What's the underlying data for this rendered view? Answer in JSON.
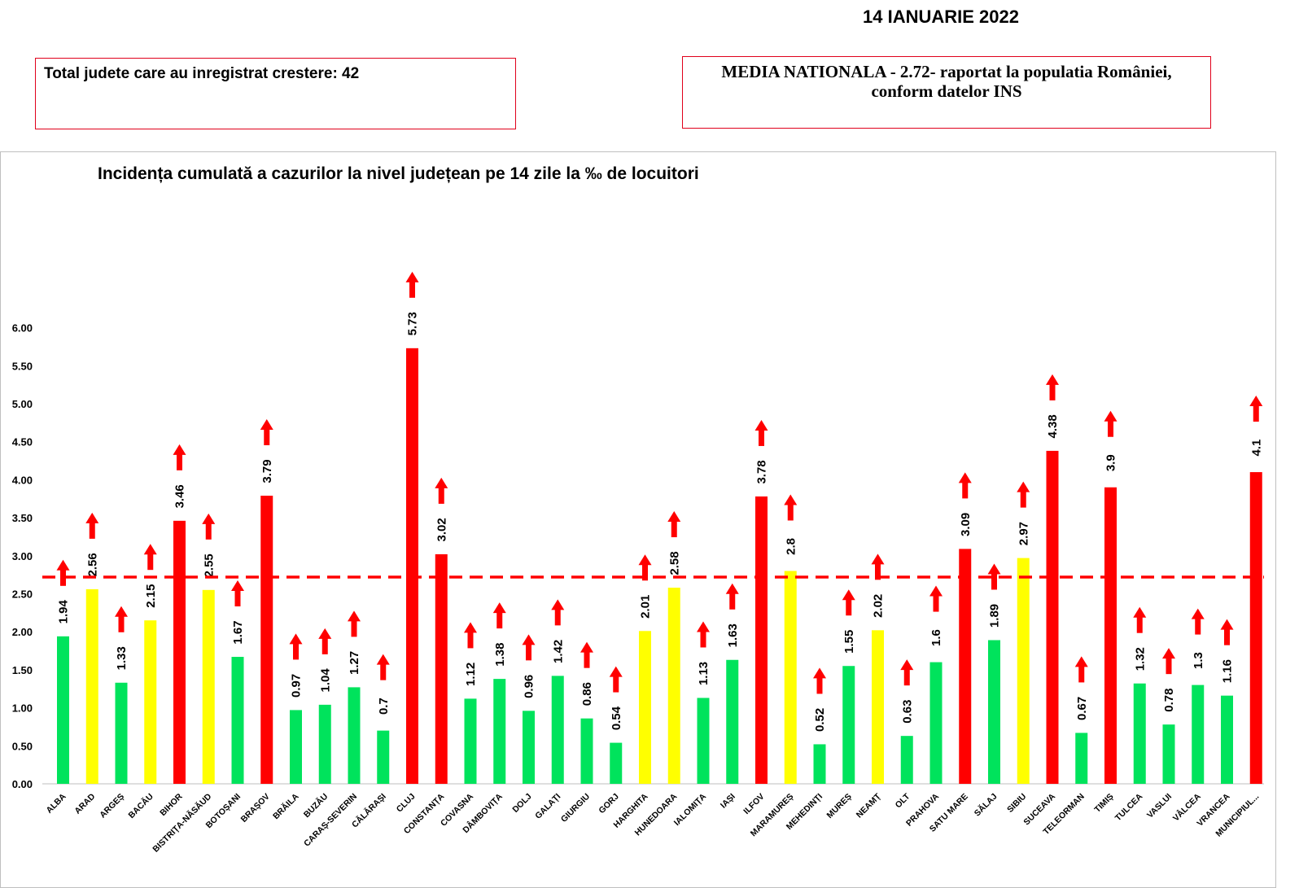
{
  "header": {
    "date": "14 IANUARIE 2022",
    "total_label": "Total judete care au inregistrat crestere: 42",
    "national_line1": "MEDIA NATIONALA - 2.72-  raportat la populatia României,",
    "national_line2": "conform datelor INS"
  },
  "colors": {
    "green": "#00e35c",
    "yellow": "#ffff00",
    "red": "#ff0000",
    "arrow": "#ff0000",
    "reference_line": "#ff0000"
  },
  "chart_data": {
    "type": "bar",
    "title": "Incidența cumulată a cazurilor la nivel județean pe 14 zile la ‰ de locuitori",
    "xlabel": "",
    "ylabel": "",
    "ylim": [
      0,
      6
    ],
    "yticks": [
      "0.00",
      "0.50",
      "1.00",
      "1.50",
      "2.00",
      "2.50",
      "3.00",
      "3.50",
      "4.00",
      "4.50",
      "5.00",
      "5.50",
      "6.00"
    ],
    "reference_line": {
      "value": 2.72,
      "style": "dashed"
    },
    "categories": [
      "ALBA",
      "ARAD",
      "ARGEȘ",
      "BACĂU",
      "BIHOR",
      "BISTRIȚA-NĂSĂUD",
      "BOTOȘANI",
      "BRAȘOV",
      "BRĂILA",
      "BUZĂU",
      "CARAȘ-SEVERIN",
      "CĂLĂRAȘI",
      "CLUJ",
      "CONSTANȚA",
      "COVASNA",
      "DÂMBOVIȚA",
      "DOLJ",
      "GALAȚI",
      "GIURGIU",
      "GORJ",
      "HARGHITA",
      "HUNEDOARA",
      "IALOMIȚA",
      "IAȘI",
      "ILFOV",
      "MARAMUREȘ",
      "MEHEDINȚI",
      "MUREȘ",
      "NEAMȚ",
      "OLT",
      "PRAHOVA",
      "SATU MARE",
      "SĂLAJ",
      "SIBIU",
      "SUCEAVA",
      "TELEORMAN",
      "TIMIȘ",
      "TULCEA",
      "VASLUI",
      "VÂLCEA",
      "VRANCEA",
      "MUNICIPIUL..."
    ],
    "values": [
      1.94,
      2.56,
      1.33,
      2.15,
      3.46,
      2.55,
      1.67,
      3.79,
      0.97,
      1.04,
      1.27,
      0.7,
      5.73,
      3.02,
      1.12,
      1.38,
      0.96,
      1.42,
      0.86,
      0.54,
      2.01,
      2.58,
      1.13,
      1.63,
      3.78,
      2.8,
      0.52,
      1.55,
      2.02,
      0.63,
      1.6,
      3.09,
      1.89,
      2.97,
      4.38,
      0.67,
      3.9,
      1.32,
      0.78,
      1.3,
      1.16,
      4.1
    ],
    "value_labels": [
      "1.94",
      "2.56",
      "1.33",
      "2.15",
      "3.46",
      "2.55",
      "1.67",
      "3.79",
      "0.97",
      "1.04",
      "1.27",
      "0.7",
      "5.73",
      "3.02",
      "1.12",
      "1.38",
      "0.96",
      "1.42",
      "0.86",
      "0.54",
      "2.01",
      "2.58",
      "1.13",
      "1.63",
      "3.78",
      "2.8",
      "0.52",
      "1.55",
      "2.02",
      "0.63",
      "1.6",
      "3.09",
      "1.89",
      "2.97",
      "4.38",
      "0.67",
      "3.9",
      "1.32",
      "0.78",
      "1.3",
      "1.16",
      "4.1"
    ],
    "bar_colors": [
      "green",
      "yellow",
      "green",
      "yellow",
      "red",
      "yellow",
      "green",
      "red",
      "green",
      "green",
      "green",
      "green",
      "red",
      "red",
      "green",
      "green",
      "green",
      "green",
      "green",
      "green",
      "yellow",
      "yellow",
      "green",
      "green",
      "red",
      "yellow",
      "green",
      "green",
      "yellow",
      "green",
      "green",
      "red",
      "green",
      "yellow",
      "red",
      "green",
      "red",
      "green",
      "green",
      "green",
      "green",
      "red"
    ],
    "trend": "increase",
    "legend": "none"
  }
}
